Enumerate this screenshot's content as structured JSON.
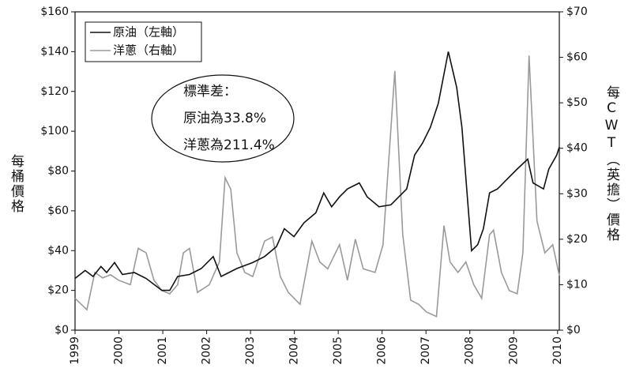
{
  "chart_data": {
    "type": "line",
    "ylabel": "每桶價格",
    "y2label": "每CWT（英擔）價格",
    "annotation": [
      "標準差：",
      "原油為33.8%",
      "洋蔥為211.4%"
    ],
    "legend": "upper left",
    "xlim": [
      1999,
      2010.04
    ],
    "xticks": [
      1999,
      2000,
      2001,
      2002,
      2003,
      2004,
      2005,
      2006,
      2007,
      2008,
      2009,
      2010
    ],
    "ylim": [
      0,
      160
    ],
    "yticks": [
      {
        "value": 0,
        "label": "$0"
      },
      {
        "value": 20,
        "label": "$20"
      },
      {
        "value": 40,
        "label": "$40"
      },
      {
        "value": 60,
        "label": "$60"
      },
      {
        "value": 80,
        "label": "$80"
      },
      {
        "value": 100,
        "label": "$100"
      },
      {
        "value": 120,
        "label": "$120"
      },
      {
        "value": 140,
        "label": "$140"
      },
      {
        "value": 160,
        "label": "$160"
      }
    ],
    "y2lim": [
      0,
      70
    ],
    "y2ticks": [
      {
        "value": 0,
        "label": "$0"
      },
      {
        "value": 10,
        "label": "$10"
      },
      {
        "value": 20,
        "label": "$20"
      },
      {
        "value": 30,
        "label": "$30"
      },
      {
        "value": 40,
        "label": "$40"
      },
      {
        "value": 50,
        "label": "$50"
      },
      {
        "value": 60,
        "label": "$60"
      },
      {
        "value": 70,
        "label": "$70"
      }
    ],
    "series": [
      {
        "name": "原油（左軸）",
        "color": "#111111",
        "axis": "y",
        "x": [
          1999.0,
          1999.23,
          1999.41,
          1999.59,
          1999.72,
          1999.9,
          2000.08,
          2000.35,
          2000.62,
          2000.98,
          2001.16,
          2001.34,
          2001.61,
          2001.88,
          2002.15,
          2002.33,
          2002.69,
          2003.05,
          2003.32,
          2003.59,
          2003.77,
          2003.99,
          2004.22,
          2004.49,
          2004.67,
          2004.85,
          2005.03,
          2005.21,
          2005.48,
          2005.66,
          2005.93,
          2006.2,
          2006.38,
          2006.56,
          2006.74,
          2006.92,
          2007.1,
          2007.28,
          2007.51,
          2007.7,
          2007.82,
          2008.04,
          2008.18,
          2008.31,
          2008.45,
          2008.63,
          2008.81,
          2009.08,
          2009.32,
          2009.44,
          2009.68,
          2009.8,
          2009.98,
          2010.04
        ],
        "values": [
          26,
          30,
          27,
          32,
          29,
          34,
          28,
          29,
          26,
          20,
          20,
          27,
          28,
          31,
          37,
          27,
          31,
          34,
          37,
          42,
          51,
          47,
          54,
          59,
          69,
          62,
          67,
          71,
          74,
          67,
          62,
          63,
          67,
          71,
          88,
          94,
          102,
          114,
          140,
          122,
          102,
          40,
          43,
          51,
          69,
          71,
          75,
          81,
          86,
          74,
          71,
          81,
          88,
          92
        ]
      },
      {
        "name": "洋蔥（右軸）",
        "color": "#9a9a9a",
        "axis": "y2",
        "x": [
          1999.0,
          1999.27,
          1999.45,
          1999.63,
          1999.81,
          1999.99,
          2000.26,
          2000.44,
          2000.62,
          2000.8,
          2000.98,
          2001.16,
          2001.34,
          2001.47,
          2001.61,
          2001.79,
          2002.06,
          2002.29,
          2002.42,
          2002.55,
          2002.69,
          2002.87,
          2003.05,
          2003.32,
          2003.5,
          2003.68,
          2003.86,
          2004.13,
          2004.4,
          2004.58,
          2004.76,
          2005.03,
          2005.21,
          2005.39,
          2005.57,
          2005.84,
          2006.02,
          2006.29,
          2006.47,
          2006.65,
          2006.83,
          2007.01,
          2007.24,
          2007.41,
          2007.55,
          2007.73,
          2007.91,
          2008.09,
          2008.27,
          2008.45,
          2008.54,
          2008.72,
          2008.9,
          2009.08,
          2009.21,
          2009.35,
          2009.53,
          2009.71,
          2009.89,
          2010.04
        ],
        "values": [
          7,
          4.5,
          12.7,
          11.5,
          12.2,
          11,
          10,
          18,
          17,
          11,
          8.7,
          8,
          10,
          17,
          18,
          8.3,
          10,
          15,
          33.5,
          31,
          17,
          12.7,
          11.8,
          19.6,
          20.5,
          11.8,
          8.3,
          5.7,
          19.6,
          15,
          13.5,
          18.8,
          11,
          20,
          13.5,
          12.7,
          18.8,
          57,
          21,
          6.6,
          5.7,
          4,
          3,
          23,
          15,
          12.7,
          15,
          10,
          7,
          21,
          22,
          12.7,
          8.7,
          8,
          17,
          60.4,
          24,
          17,
          18.8,
          12
        ]
      }
    ]
  }
}
